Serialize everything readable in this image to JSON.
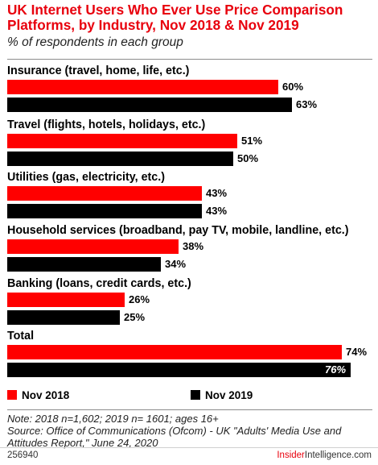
{
  "header": {
    "title": "UK Internet Users Who Ever Use Price Comparison Platforms, by Industry, Nov 2018 & Nov 2019",
    "subtitle": "% of respondents in each group"
  },
  "chart_data": {
    "type": "bar",
    "orientation": "horizontal",
    "title": "UK Internet Users Who Ever Use Price Comparison Platforms, by Industry, Nov 2018 & Nov 2019",
    "subtitle": "% of respondents in each group",
    "categories": [
      "Insurance (travel, home, life, etc.)",
      "Travel (flights, hotels, holidays, etc.)",
      "Utilities (gas, electricity, etc.)",
      "Household services (broadband, pay TV, mobile, landline, etc.)",
      "Banking (loans, credit cards, etc.)",
      "Total"
    ],
    "series": [
      {
        "name": "Nov 2018",
        "color": "#ff0000",
        "values": [
          60,
          51,
          43,
          38,
          26,
          74
        ],
        "labels": [
          "60%",
          "51%",
          "43%",
          "38%",
          "26%",
          "74%"
        ]
      },
      {
        "name": "Nov 2019",
        "color": "#000000",
        "values": [
          63,
          50,
          43,
          34,
          25,
          76
        ],
        "labels": [
          "63%",
          "50%",
          "43%",
          "34%",
          "25%",
          "76%"
        ]
      }
    ],
    "xlim": [
      0,
      81
    ],
    "grid": false,
    "legend_position": "bottom"
  },
  "legend": [
    "Nov 2018",
    "Nov 2019"
  ],
  "footer": {
    "note_line1": "Note: 2018 n=1,602; 2019 n= 1601; ages 16+",
    "note_line2": "Source: Office of Communications (Ofcom) - UK \"Adults' Media Use and Attitudes Report,\" June 24, 2020",
    "chart_id": "256940",
    "brand_prefix": "Insider",
    "brand_suffix": "Intelligence.com"
  }
}
